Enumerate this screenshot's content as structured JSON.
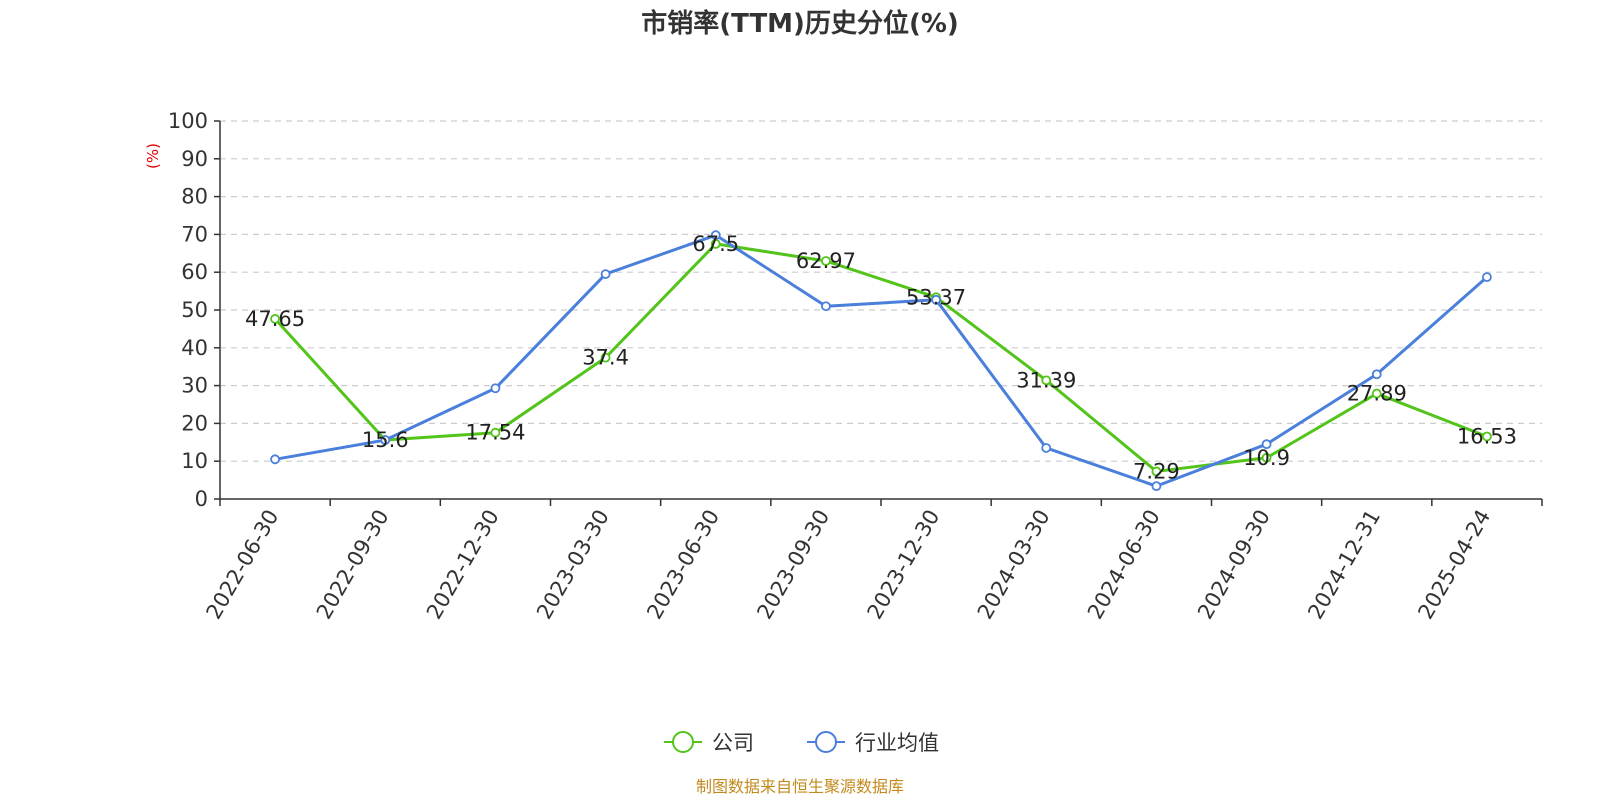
{
  "chart_data": {
    "type": "line",
    "title": "市销率(TTM)历史分位(%)",
    "ylabel": "(%)",
    "ylim": [
      0,
      100
    ],
    "yticks": [
      0,
      10,
      20,
      30,
      40,
      50,
      60,
      70,
      80,
      90,
      100
    ],
    "grid": true,
    "categories": [
      "2022-06-30",
      "2022-09-30",
      "2022-12-30",
      "2023-03-30",
      "2023-06-30",
      "2023-09-30",
      "2023-12-30",
      "2024-03-30",
      "2024-06-30",
      "2024-09-30",
      "2024-12-31",
      "2025-04-24"
    ],
    "series": [
      {
        "name": "公司",
        "color": "#52c41a",
        "values": [
          47.65,
          15.6,
          17.54,
          37.4,
          67.5,
          62.97,
          53.37,
          31.39,
          7.29,
          10.9,
          27.89,
          16.53
        ],
        "labels_shown": true
      },
      {
        "name": "行业均值",
        "color": "#4a7fdc",
        "values": [
          10.5,
          15.6,
          29.3,
          59.5,
          69.8,
          51.0,
          52.7,
          13.5,
          3.4,
          14.5,
          33.0,
          58.7
        ],
        "labels_shown": false
      }
    ],
    "legend_position": "bottom-center",
    "source": "制图数据来自恒生聚源数据库"
  }
}
